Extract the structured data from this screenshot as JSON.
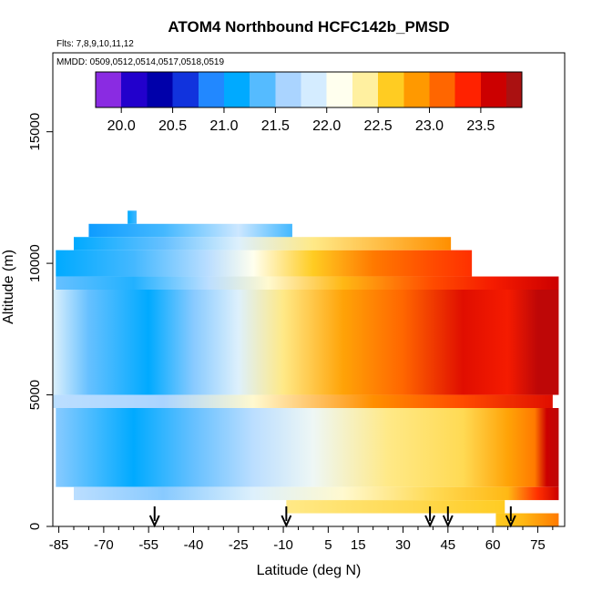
{
  "chart_data": {
    "type": "heatmap",
    "title": "ATOM4 Northbound HCFC142b_PMSD",
    "flights_label": "Flts: 7,8,9,10,11,12",
    "mmdd_label": "MMDD: 0509,0512,0514,0517,0518,0519",
    "xlabel": "Latitude (deg N)",
    "ylabel": "Altitude (m)",
    "xlim": [
      -87,
      84
    ],
    "ylim": [
      0,
      18000
    ],
    "x_ticks": [
      -85,
      -70,
      -55,
      -40,
      -25,
      -10,
      5,
      15,
      30,
      45,
      60,
      75
    ],
    "x_tick_labels": [
      "-85",
      "-70",
      "-55",
      "-40",
      "-25",
      "-10",
      "5",
      "15",
      "30",
      "45",
      "60",
      "75"
    ],
    "y_ticks": [
      0,
      5000,
      10000,
      15000
    ],
    "y_tick_labels": [
      "0",
      "5000",
      "10000",
      "15000"
    ],
    "colorbar": {
      "ticks": [
        20.0,
        20.5,
        21.0,
        21.5,
        22.0,
        22.5,
        23.0,
        23.5
      ],
      "tick_labels": [
        "20.0",
        "20.5",
        "21.0",
        "21.5",
        "22.0",
        "22.5",
        "23.0",
        "23.5"
      ],
      "vmin": 19.75,
      "vmax": 23.9,
      "stops": [
        {
          "v": 19.75,
          "c": "#8a2be2"
        },
        {
          "v": 20.0,
          "c": "#2200cc"
        },
        {
          "v": 20.25,
          "c": "#0000aa"
        },
        {
          "v": 20.5,
          "c": "#1133dd"
        },
        {
          "v": 20.75,
          "c": "#2288ff"
        },
        {
          "v": 21.0,
          "c": "#00aaff"
        },
        {
          "v": 21.25,
          "c": "#55bbff"
        },
        {
          "v": 21.5,
          "c": "#aad4ff"
        },
        {
          "v": 21.75,
          "c": "#d4ecff"
        },
        {
          "v": 22.0,
          "c": "#ffffee"
        },
        {
          "v": 22.25,
          "c": "#fff0a0"
        },
        {
          "v": 22.5,
          "c": "#ffcc22"
        },
        {
          "v": 22.75,
          "c": "#ff9900"
        },
        {
          "v": 23.0,
          "c": "#ff6600"
        },
        {
          "v": 23.25,
          "c": "#ff2200"
        },
        {
          "v": 23.5,
          "c": "#cc0000"
        },
        {
          "v": 23.75,
          "c": "#aa1111"
        }
      ]
    },
    "flight_marker_latitudes": [
      -53,
      -9,
      39,
      45,
      66
    ],
    "altitude_bands": [
      {
        "ymin": 9500,
        "ymax": 10500,
        "xmin": -86,
        "xmax": 53,
        "profile": [
          [
            -86,
            21.0
          ],
          [
            -60,
            21.2
          ],
          [
            -35,
            21.6
          ],
          [
            -20,
            22.0
          ],
          [
            0,
            22.5
          ],
          [
            20,
            22.9
          ],
          [
            40,
            23.1
          ],
          [
            53,
            23.2
          ]
        ]
      },
      {
        "ymin": 10500,
        "ymax": 11000,
        "xmin": -80,
        "xmax": 46,
        "profile": [
          [
            -80,
            21.0
          ],
          [
            -50,
            21.3
          ],
          [
            -25,
            21.8
          ],
          [
            0,
            22.3
          ],
          [
            46,
            22.8
          ]
        ]
      },
      {
        "ymin": 11000,
        "ymax": 11500,
        "xmin": -75,
        "xmax": -7,
        "profile": [
          [
            -75,
            20.9
          ],
          [
            -50,
            21.2
          ],
          [
            -25,
            21.7
          ],
          [
            -7,
            21.2
          ]
        ]
      },
      {
        "ymin": 11500,
        "ymax": 12000,
        "xmin": -62,
        "xmax": -59,
        "profile": [
          [
            -62,
            21.0
          ],
          [
            -59,
            21.2
          ]
        ]
      },
      {
        "ymin": 9000,
        "ymax": 9500,
        "xmin": -86,
        "xmax": 82,
        "profile": [
          [
            -86,
            21.3
          ],
          [
            -60,
            21.1
          ],
          [
            -35,
            21.6
          ],
          [
            -15,
            22.1
          ],
          [
            10,
            22.6
          ],
          [
            40,
            23.1
          ],
          [
            60,
            23.3
          ],
          [
            82,
            23.5
          ]
        ]
      },
      {
        "ymin": 5000,
        "ymax": 9000,
        "xmin": -87,
        "xmax": 82,
        "profile": [
          [
            -87,
            21.8
          ],
          [
            -75,
            21.3
          ],
          [
            -55,
            21.0
          ],
          [
            -40,
            21.4
          ],
          [
            -25,
            21.8
          ],
          [
            -10,
            22.3
          ],
          [
            10,
            22.7
          ],
          [
            30,
            23.0
          ],
          [
            50,
            23.4
          ],
          [
            65,
            23.3
          ],
          [
            75,
            23.6
          ],
          [
            82,
            23.6
          ]
        ]
      },
      {
        "ymin": 4500,
        "ymax": 5000,
        "xmin": -87,
        "xmax": 80,
        "profile": [
          [
            -87,
            21.6
          ],
          [
            -50,
            21.5
          ],
          [
            -20,
            22.1
          ],
          [
            20,
            22.8
          ],
          [
            50,
            23.1
          ],
          [
            80,
            23.4
          ]
        ]
      },
      {
        "ymin": 1500,
        "ymax": 4500,
        "xmin": -86,
        "xmax": 82,
        "profile": [
          [
            -86,
            21.4
          ],
          [
            -60,
            21.0
          ],
          [
            -40,
            21.3
          ],
          [
            -20,
            21.6
          ],
          [
            0,
            21.9
          ],
          [
            25,
            22.3
          ],
          [
            50,
            22.4
          ],
          [
            65,
            22.7
          ],
          [
            74,
            22.9
          ],
          [
            78,
            23.5
          ],
          [
            82,
            23.6
          ]
        ]
      },
      {
        "ymin": 1000,
        "ymax": 1500,
        "xmin": -80,
        "xmax": 82,
        "profile": [
          [
            -80,
            21.6
          ],
          [
            -50,
            21.4
          ],
          [
            -20,
            21.8
          ],
          [
            10,
            22.1
          ],
          [
            40,
            22.4
          ],
          [
            65,
            22.6
          ],
          [
            75,
            23.2
          ],
          [
            82,
            23.5
          ]
        ]
      },
      {
        "ymin": 500,
        "ymax": 1000,
        "xmin": -9,
        "xmax": 64,
        "profile": [
          [
            -9,
            22.3
          ],
          [
            30,
            22.4
          ],
          [
            64,
            22.5
          ]
        ]
      },
      {
        "ymin": 0,
        "ymax": 500,
        "xmin": 61,
        "xmax": 82,
        "profile": [
          [
            61,
            22.5
          ],
          [
            70,
            22.6
          ],
          [
            82,
            22.9
          ]
        ]
      }
    ]
  }
}
